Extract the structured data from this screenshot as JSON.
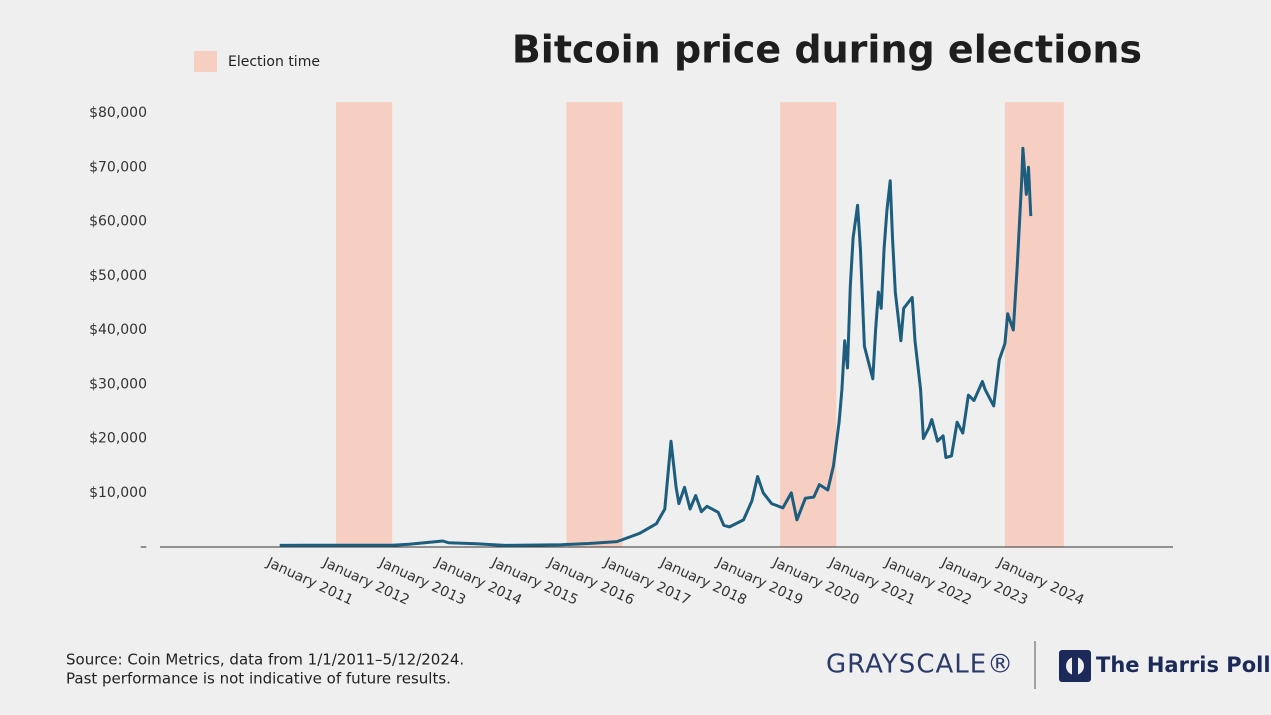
{
  "chart_data": {
    "type": "line",
    "title": "Bitcoin price during elections",
    "x": [
      2011.0,
      2011.45,
      2012.0,
      2013.0,
      2013.3,
      2013.9,
      2014.0,
      2014.5,
      2015.0,
      2016.0,
      2016.5,
      2017.0,
      2017.4,
      2017.7,
      2017.85,
      2017.96,
      2018.05,
      2018.1,
      2018.2,
      2018.3,
      2018.4,
      2018.5,
      2018.6,
      2018.8,
      2018.9,
      2019.0,
      2019.25,
      2019.4,
      2019.5,
      2019.6,
      2019.75,
      2019.95,
      2020.1,
      2020.2,
      2020.35,
      2020.5,
      2020.6,
      2020.75,
      2020.85,
      2020.95,
      2021.0,
      2021.05,
      2021.1,
      2021.15,
      2021.2,
      2021.28,
      2021.33,
      2021.4,
      2021.45,
      2021.55,
      2021.6,
      2021.65,
      2021.7,
      2021.75,
      2021.8,
      2021.86,
      2021.9,
      2021.95,
      2022.05,
      2022.1,
      2022.25,
      2022.3,
      2022.4,
      2022.45,
      2022.55,
      2022.6,
      2022.7,
      2022.8,
      2022.85,
      2022.95,
      2023.05,
      2023.15,
      2023.25,
      2023.35,
      2023.5,
      2023.55,
      2023.7,
      2023.8,
      2023.9,
      2023.95,
      2024.05,
      2024.12,
      2024.2,
      2024.22,
      2024.28,
      2024.32,
      2024.36
    ],
    "values": [
      300,
      330,
      305,
      313,
      500,
      1100,
      800,
      600,
      300,
      430,
      650,
      1000,
      2500,
      4300,
      7000,
      19500,
      11000,
      8000,
      11000,
      7000,
      9500,
      6500,
      7500,
      6400,
      4000,
      3700,
      5000,
      8500,
      13000,
      10000,
      8000,
      7200,
      10000,
      5000,
      9000,
      9200,
      11500,
      10500,
      15000,
      23000,
      29000,
      38000,
      33000,
      48000,
      57000,
      63000,
      55000,
      37000,
      35000,
      31000,
      40000,
      47000,
      44000,
      55000,
      62000,
      67500,
      57000,
      47000,
      38000,
      44000,
      46000,
      38000,
      29000,
      20000,
      22000,
      23500,
      19500,
      20500,
      16500,
      16800,
      23000,
      21000,
      28000,
      27000,
      30500,
      29000,
      26000,
      34500,
      37500,
      43000,
      40000,
      52000,
      68000,
      73500,
      65000,
      70000,
      61000
    ],
    "color": "#1d5e7e",
    "bands": {
      "name": "Election time",
      "color": "#f7cfc2",
      "ranges": [
        [
          2012.0,
          2013.0
        ],
        [
          2016.1,
          2017.1
        ],
        [
          2019.9,
          2020.9
        ],
        [
          2023.9,
          2024.95
        ]
      ]
    },
    "xlim": [
      2008.87,
      2026.89
    ],
    "xticks": [
      {
        "value": 2011,
        "label": "January 2011"
      },
      {
        "value": 2012,
        "label": "January 2012"
      },
      {
        "value": 2013,
        "label": "January 2013"
      },
      {
        "value": 2014,
        "label": "January 2014"
      },
      {
        "value": 2015,
        "label": "January 2015"
      },
      {
        "value": 2016,
        "label": "January 2016"
      },
      {
        "value": 2017,
        "label": "January 2017"
      },
      {
        "value": 2018,
        "label": "January 2018"
      },
      {
        "value": 2019,
        "label": "January 2019"
      },
      {
        "value": 2020,
        "label": "January 2020"
      },
      {
        "value": 2021,
        "label": "January 2021"
      },
      {
        "value": 2022,
        "label": "January 2022"
      },
      {
        "value": 2023,
        "label": "January 2023"
      },
      {
        "value": 2024,
        "label": "January 2024"
      }
    ],
    "ylim": [
      0,
      82000
    ],
    "yticks": [
      {
        "value": 0,
        "label": "–"
      },
      {
        "value": 10000,
        "label": "$10,000"
      },
      {
        "value": 20000,
        "label": "$20,000"
      },
      {
        "value": 30000,
        "label": "$30,000"
      },
      {
        "value": 40000,
        "label": "$40,000"
      },
      {
        "value": 50000,
        "label": "$50,000"
      },
      {
        "value": 60000,
        "label": "$60,000"
      },
      {
        "value": 70000,
        "label": "$70,000"
      },
      {
        "value": 80000,
        "label": "$80,000"
      }
    ],
    "grid": false,
    "footnote": [
      "Source: Coin Metrics, data from 1/1/2011–5/12/2024.",
      "Past performance is not indicative of future results."
    ],
    "logos": [
      "GRAYSCALE®",
      "The Harris Poll"
    ]
  }
}
